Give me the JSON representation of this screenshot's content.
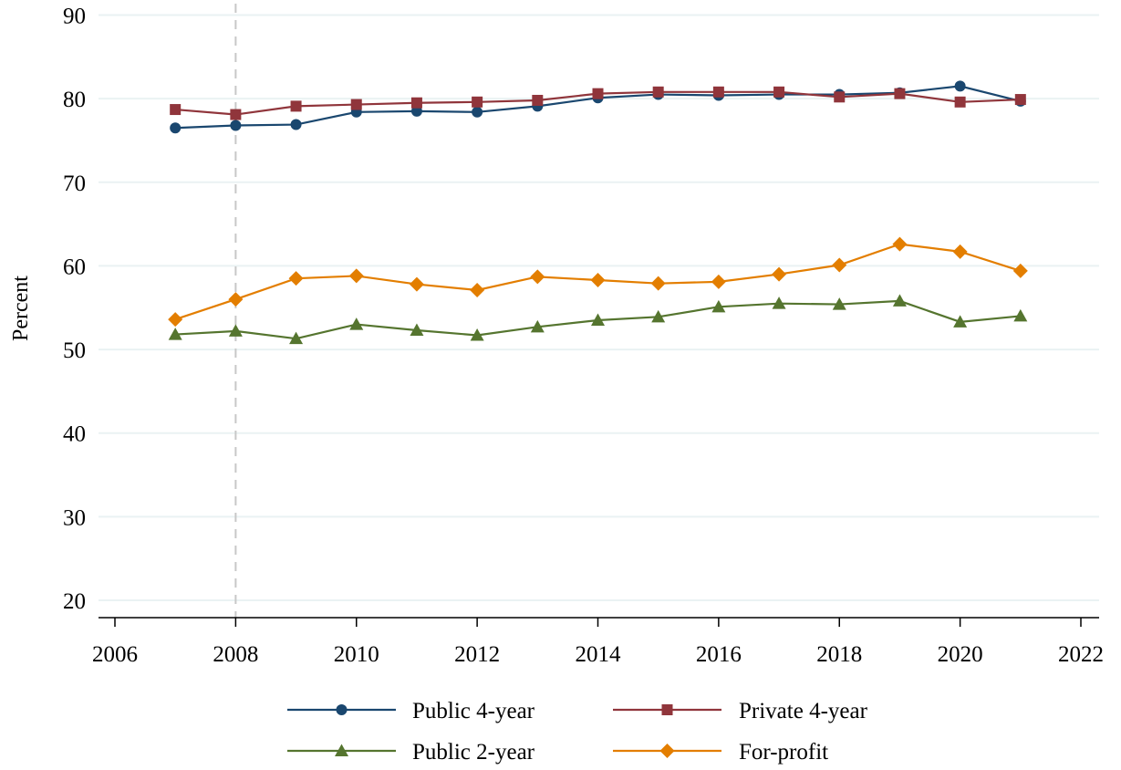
{
  "chart_data": {
    "type": "line",
    "title": "",
    "xlabel": "",
    "ylabel": "Percent",
    "xlim": [
      2006,
      2022
    ],
    "ylim": [
      18,
      90
    ],
    "x_ticks": [
      2006,
      2008,
      2010,
      2012,
      2014,
      2016,
      2018,
      2020,
      2022
    ],
    "y_ticks": [
      20,
      30,
      40,
      50,
      60,
      70,
      80,
      90
    ],
    "grid": "horizontal",
    "reference_line": {
      "axis": "x",
      "value": 2008,
      "style": "dashed"
    },
    "legend_position": "bottom",
    "x": [
      2007,
      2008,
      2009,
      2010,
      2011,
      2012,
      2013,
      2014,
      2015,
      2016,
      2017,
      2018,
      2019,
      2020,
      2021
    ],
    "series": [
      {
        "name": "Public 4-year",
        "color": "#1a476f",
        "marker": "circle",
        "values": [
          76.5,
          76.8,
          76.9,
          78.4,
          78.5,
          78.4,
          79.1,
          80.1,
          80.5,
          80.4,
          80.5,
          80.5,
          80.7,
          81.5,
          79.7
        ]
      },
      {
        "name": "Private 4-year",
        "color": "#90353b",
        "marker": "square",
        "values": [
          78.7,
          78.1,
          79.1,
          79.3,
          79.5,
          79.6,
          79.8,
          80.6,
          80.8,
          80.8,
          80.8,
          80.2,
          80.6,
          79.6,
          79.9
        ]
      },
      {
        "name": "Public 2-year",
        "color": "#55752f",
        "marker": "triangle",
        "values": [
          51.8,
          52.2,
          51.3,
          53.0,
          52.3,
          51.7,
          52.7,
          53.5,
          53.9,
          55.1,
          55.5,
          55.4,
          55.8,
          53.3,
          54.0
        ]
      },
      {
        "name": "For-profit",
        "color": "#e37e00",
        "marker": "diamond",
        "values": [
          53.6,
          56.0,
          58.5,
          58.8,
          57.8,
          57.1,
          58.7,
          58.3,
          57.9,
          58.1,
          59.0,
          60.1,
          62.6,
          61.7,
          59.4
        ]
      }
    ]
  }
}
